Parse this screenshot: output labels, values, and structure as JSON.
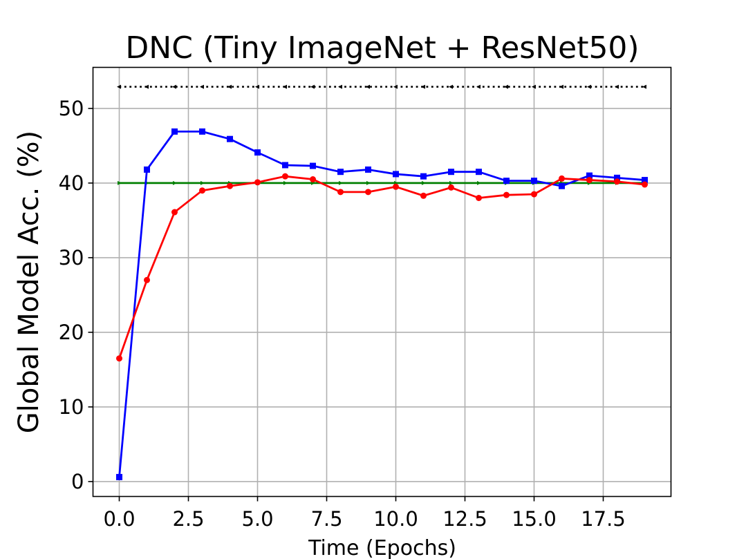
{
  "chart_data": {
    "type": "line",
    "title": "DNC (Tiny ImageNet + ResNet50)",
    "xlabel": "Time (Epochs)",
    "ylabel": "Global Model Acc. (%)",
    "xlim": [
      -0.95,
      19.95
    ],
    "ylim": [
      -2.0,
      55.5
    ],
    "xticks": [
      0.0,
      2.5,
      5.0,
      7.5,
      10.0,
      12.5,
      15.0,
      17.5
    ],
    "xtick_labels": [
      "0.0",
      "2.5",
      "5.0",
      "7.5",
      "10.0",
      "12.5",
      "15.0",
      "17.5"
    ],
    "yticks": [
      0,
      10,
      20,
      30,
      40,
      50
    ],
    "ytick_labels": [
      "0",
      "10",
      "20",
      "30",
      "40",
      "50"
    ],
    "grid": true,
    "x": [
      0,
      1,
      2,
      3,
      4,
      5,
      6,
      7,
      8,
      9,
      10,
      11,
      12,
      13,
      14,
      15,
      16,
      17,
      18,
      19
    ],
    "series": [
      {
        "color": "#000000",
        "line_style": "dotted",
        "marker": "triangle-left",
        "values": [
          52.9,
          52.9,
          52.9,
          52.9,
          52.9,
          52.9,
          52.9,
          52.9,
          52.9,
          52.9,
          52.9,
          52.9,
          52.9,
          52.9,
          52.9,
          52.9,
          52.9,
          52.9,
          52.9,
          52.9
        ]
      },
      {
        "color": "#008000",
        "line_style": "solid",
        "marker": "triangle-right",
        "values": [
          40.0,
          40.0,
          40.0,
          40.0,
          40.0,
          40.0,
          40.0,
          40.0,
          40.0,
          40.0,
          40.0,
          40.0,
          40.0,
          40.0,
          40.0,
          40.0,
          40.0,
          40.0,
          40.0,
          40.0
        ]
      },
      {
        "color": "#0000ff",
        "line_style": "solid",
        "marker": "square",
        "values": [
          0.6,
          41.8,
          46.9,
          46.9,
          45.9,
          44.1,
          42.4,
          42.3,
          41.5,
          41.8,
          41.2,
          40.9,
          41.5,
          41.5,
          40.3,
          40.3,
          39.6,
          41.0,
          40.7,
          40.4
        ]
      },
      {
        "color": "#ff0000",
        "line_style": "solid",
        "marker": "circle",
        "values": [
          16.5,
          27.0,
          36.1,
          39.0,
          39.6,
          40.1,
          40.9,
          40.5,
          38.8,
          38.8,
          39.5,
          38.3,
          39.4,
          38.0,
          38.4,
          38.5,
          40.6,
          40.4,
          40.2,
          39.8
        ]
      }
    ]
  }
}
